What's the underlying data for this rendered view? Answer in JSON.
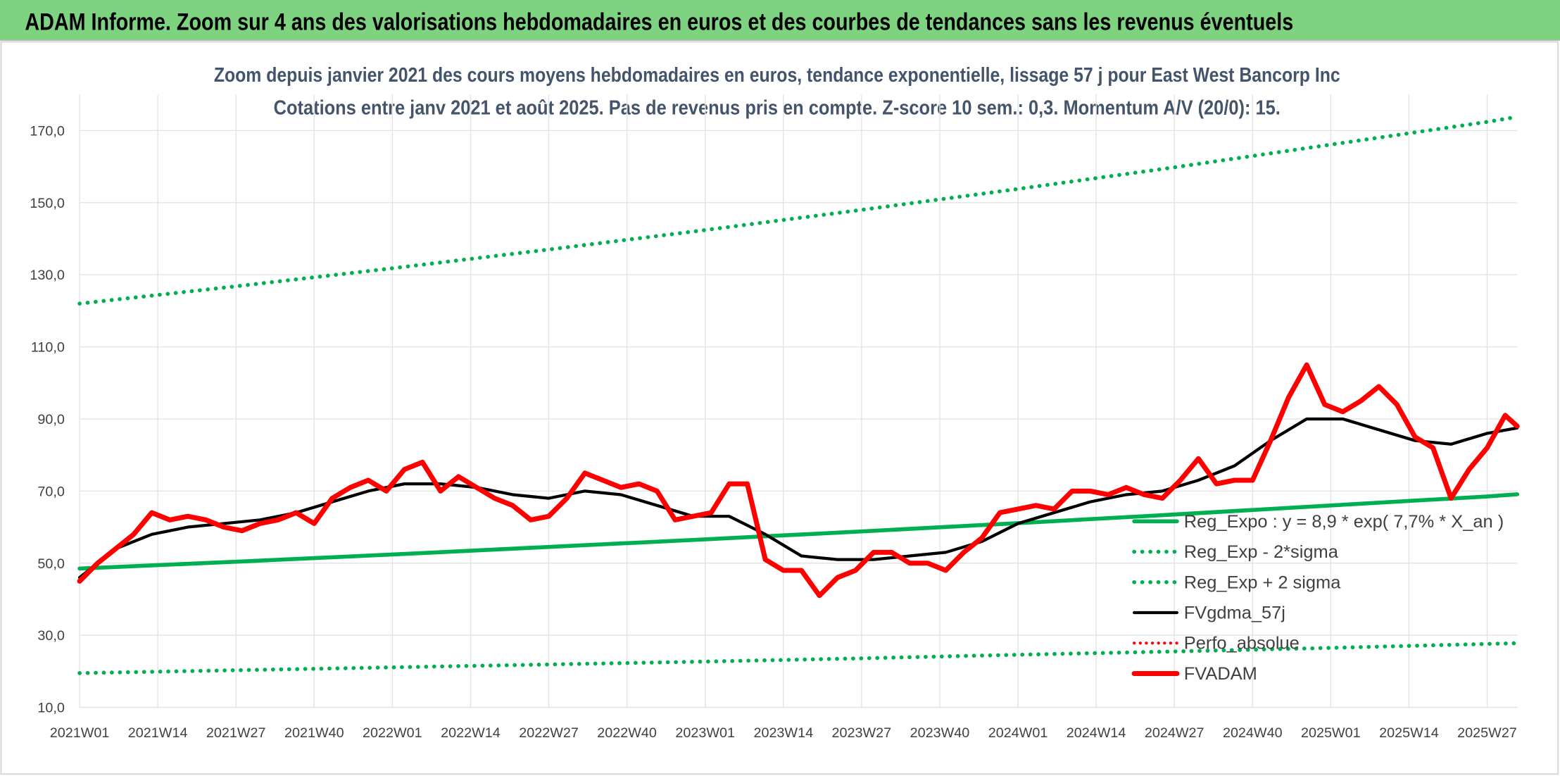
{
  "chart_data": {
    "type": "line",
    "title": "ADAM Informe. Zoom sur 4 ans des valorisations hebdomadaires en euros et des courbes de tendances sans les revenus éventuels",
    "subtitle": [
      "Zoom depuis janvier 2021 des cours moyens hebdomadaires en euros, tendance exponentielle, lissage 57 j pour East West Bancorp Inc",
      "Cotations entre janv 2021 et août 2025. Pas de revenus pris en compte. Z-score 10 sem.: 0,3. Momentum A/V (20/0): 15."
    ],
    "xlim": [
      0,
      239
    ],
    "xticks": [
      {
        "value": 0,
        "label": "2021W01"
      },
      {
        "value": 13,
        "label": "2021W14"
      },
      {
        "value": 26,
        "label": "2021W27"
      },
      {
        "value": 39,
        "label": "2021W40"
      },
      {
        "value": 52,
        "label": "2022W01"
      },
      {
        "value": 65,
        "label": "2022W14"
      },
      {
        "value": 78,
        "label": "2022W27"
      },
      {
        "value": 91,
        "label": "2022W40"
      },
      {
        "value": 104,
        "label": "2023W01"
      },
      {
        "value": 117,
        "label": "2023W14"
      },
      {
        "value": 130,
        "label": "2023W27"
      },
      {
        "value": 143,
        "label": "2023W40"
      },
      {
        "value": 156,
        "label": "2024W01"
      },
      {
        "value": 169,
        "label": "2024W14"
      },
      {
        "value": 182,
        "label": "2024W27"
      },
      {
        "value": 195,
        "label": "2024W40"
      },
      {
        "value": 208,
        "label": "2025W01"
      },
      {
        "value": 221,
        "label": "2025W14"
      },
      {
        "value": 234,
        "label": "2025W27"
      }
    ],
    "ylim": [
      10,
      180
    ],
    "yticks": [
      {
        "value": 10,
        "label": "10,0"
      },
      {
        "value": 30,
        "label": "30,0"
      },
      {
        "value": 50,
        "label": "50,0"
      },
      {
        "value": 70,
        "label": "70,0"
      },
      {
        "value": 90,
        "label": "90,0"
      },
      {
        "value": 110,
        "label": "110,0"
      },
      {
        "value": 130,
        "label": "130,0"
      },
      {
        "value": 150,
        "label": "150,0"
      },
      {
        "value": 170,
        "label": "170,0"
      }
    ],
    "grid": true,
    "legend": "lower right",
    "series": [
      {
        "name": "Reg_Expo : y = 8,9 * exp( 7,7% *  X_an )",
        "color": "#00b050",
        "style": "solid",
        "width": 4,
        "x": [
          0,
          26,
          52,
          78,
          104,
          130,
          156,
          182,
          208,
          234,
          239
        ],
        "values": [
          48.5,
          50.4,
          52.4,
          54.5,
          56.6,
          58.8,
          61.1,
          63.5,
          66.0,
          68.5,
          69.1
        ]
      },
      {
        "name": "Reg_Exp - 2*sigma",
        "color": "#00b050",
        "style": "dotted",
        "width": 4,
        "x": [
          0,
          26,
          52,
          78,
          104,
          130,
          156,
          182,
          208,
          234,
          239
        ],
        "values": [
          19.5,
          20.3,
          21.1,
          21.9,
          22.7,
          23.6,
          24.6,
          25.5,
          26.5,
          27.6,
          27.8
        ]
      },
      {
        "name": "Reg_Exp + 2 sigma",
        "color": "#00b050",
        "style": "dotted",
        "width": 4,
        "x": [
          0,
          26,
          52,
          78,
          104,
          130,
          156,
          182,
          208,
          234,
          239
        ],
        "values": [
          122,
          126.8,
          131.8,
          137.0,
          142.4,
          148.0,
          153.8,
          159.8,
          166.1,
          172.4,
          173.8
        ]
      },
      {
        "name": "FVgdma_57j",
        "color": "#000000",
        "style": "solid",
        "width": 3,
        "x": [
          0,
          6,
          12,
          18,
          24,
          30,
          36,
          42,
          48,
          54,
          60,
          66,
          72,
          78,
          84,
          90,
          96,
          102,
          108,
          114,
          120,
          126,
          132,
          138,
          144,
          150,
          156,
          162,
          168,
          174,
          180,
          186,
          192,
          198,
          204,
          210,
          216,
          222,
          228,
          234,
          239
        ],
        "values": [
          46,
          54,
          58,
          60,
          61,
          62,
          64,
          67,
          70,
          72,
          72,
          71,
          69,
          68,
          70,
          69,
          66,
          63,
          63,
          58,
          52,
          51,
          51,
          52,
          53,
          56,
          61,
          64,
          67,
          69,
          70,
          73,
          77,
          84,
          90,
          90,
          87,
          84,
          83,
          86,
          87.5
        ]
      },
      {
        "name": "Perfo_absolue",
        "color": "#ff0000",
        "style": "dotted",
        "width": 3
      },
      {
        "name": "FVADAM",
        "color": "#ff0000",
        "style": "solid",
        "width": 5,
        "x": [
          0,
          3,
          6,
          9,
          12,
          15,
          18,
          21,
          24,
          27,
          30,
          33,
          36,
          39,
          42,
          45,
          48,
          51,
          54,
          57,
          60,
          63,
          66,
          69,
          72,
          75,
          78,
          81,
          84,
          87,
          90,
          93,
          96,
          99,
          102,
          105,
          108,
          111,
          114,
          117,
          120,
          123,
          126,
          129,
          132,
          135,
          138,
          141,
          144,
          147,
          150,
          153,
          156,
          159,
          162,
          165,
          168,
          171,
          174,
          177,
          180,
          183,
          186,
          189,
          192,
          195,
          198,
          201,
          204,
          207,
          210,
          213,
          216,
          219,
          222,
          225,
          228,
          231,
          234,
          237,
          239
        ],
        "values": [
          45,
          50,
          54,
          58,
          64,
          62,
          63,
          62,
          60,
          59,
          61,
          62,
          64,
          61,
          68,
          71,
          73,
          70,
          76,
          78,
          70,
          74,
          71,
          68,
          66,
          62,
          63,
          68,
          75,
          73,
          71,
          72,
          70,
          62,
          63,
          64,
          72,
          72,
          51,
          48,
          48,
          41,
          46,
          48,
          53,
          53,
          50,
          50,
          48,
          53,
          57,
          64,
          65,
          66,
          65,
          70,
          70,
          69,
          71,
          69,
          68,
          73,
          79,
          72,
          73,
          73,
          84,
          96,
          105,
          94,
          92,
          95,
          99,
          94,
          85,
          82,
          68,
          76,
          82,
          91,
          88
        ]
      }
    ]
  }
}
